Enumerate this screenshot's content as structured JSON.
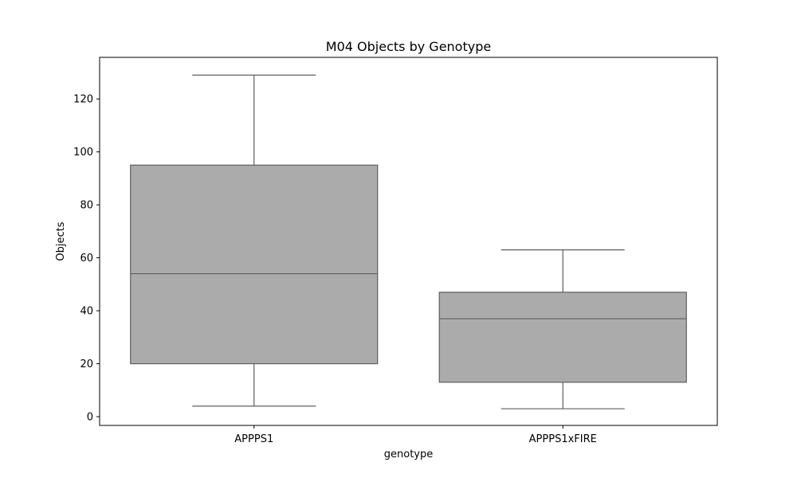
{
  "chart_data": {
    "type": "box",
    "title": "M04 Objects by Genotype",
    "xlabel": "genotype",
    "ylabel": "Objects",
    "ylim": [
      -3.3,
      135.7
    ],
    "yticks": [
      0,
      20,
      40,
      60,
      80,
      100,
      120
    ],
    "categories": [
      "APPPS1",
      "APPPS1xFIRE"
    ],
    "boxes": [
      {
        "category": "APPPS1",
        "whisker_low": 4,
        "q1": 20,
        "median": 54,
        "q3": 95,
        "whisker_high": 129
      },
      {
        "category": "APPPS1xFIRE",
        "whisker_low": 3,
        "q1": 13,
        "median": 37,
        "q3": 47,
        "whisker_high": 63
      }
    ],
    "box_color": "#ababab",
    "line_color": "#5f5f5f",
    "grid": false,
    "legend": "none"
  }
}
